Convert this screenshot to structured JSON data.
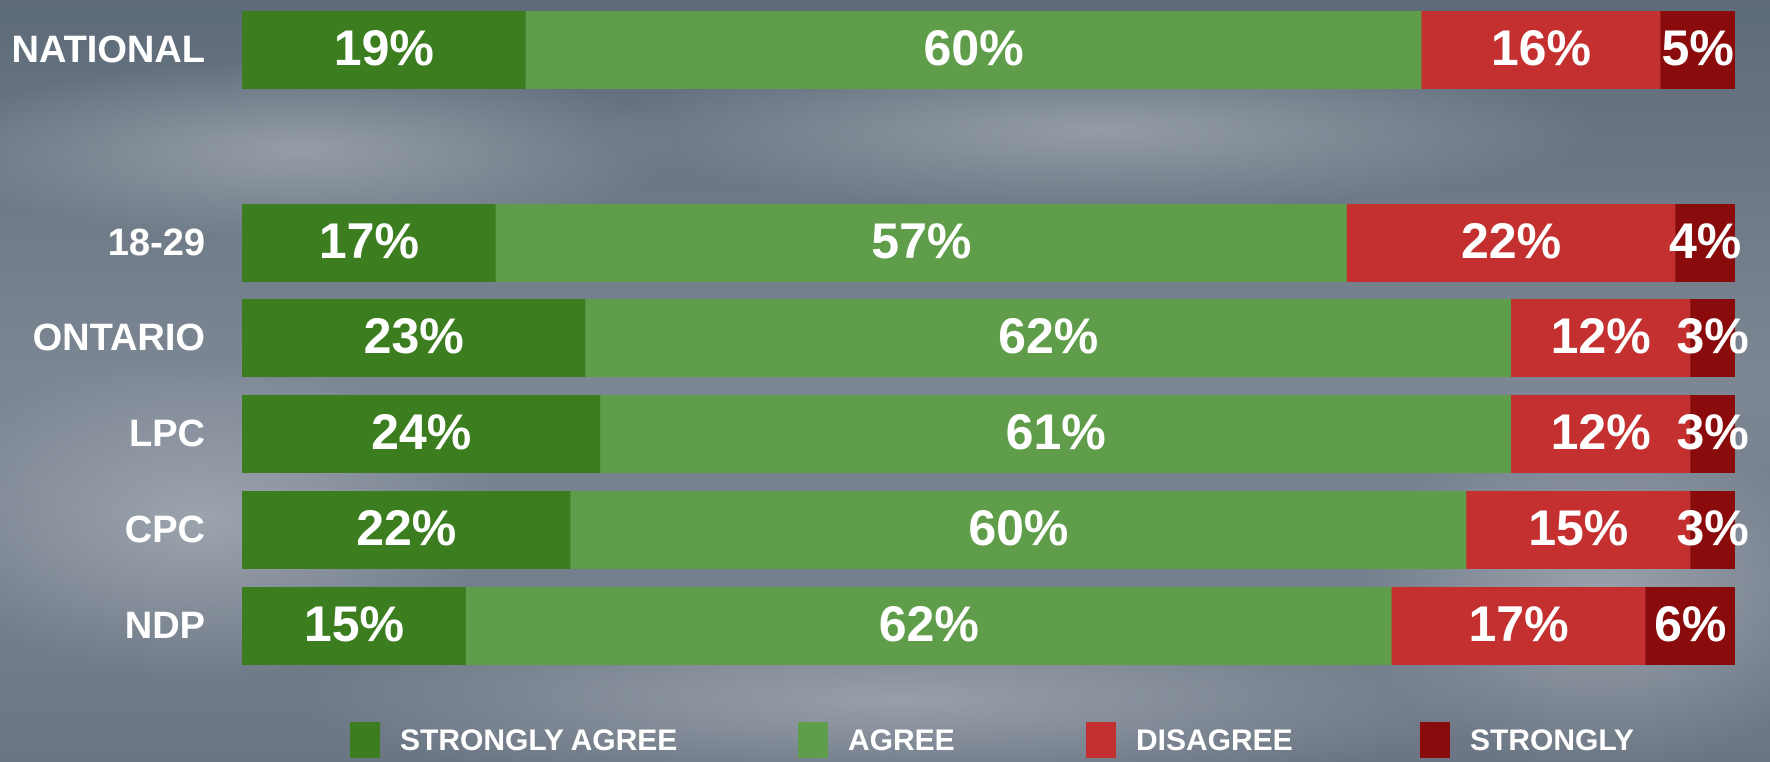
{
  "chart_data": {
    "type": "stacked_bar_horizontal",
    "categories": [
      "NATIONAL",
      "18-29",
      "ONTARIO",
      "LPC",
      "CPC",
      "NDP"
    ],
    "series": [
      {
        "name": "STRONGLY AGREE",
        "color": "#3b7d1f",
        "values": [
          19,
          17,
          23,
          24,
          22,
          15
        ],
        "value_labels": [
          "19%",
          "17%",
          "23%",
          "24%",
          "22%",
          "15%"
        ]
      },
      {
        "name": "AGREE",
        "color": "#5f9d4a",
        "values": [
          60,
          57,
          62,
          61,
          60,
          62
        ],
        "value_labels": [
          "60%",
          "57%",
          "62%",
          "61%",
          "60%",
          "62%"
        ]
      },
      {
        "name": "DISAGREE",
        "color": "#c3302f",
        "values": [
          16,
          22,
          12,
          12,
          15,
          17
        ],
        "value_labels": [
          "16%",
          "22%",
          "12%",
          "12%",
          "15%",
          "17%"
        ]
      },
      {
        "name": "STRONGLY",
        "color": "#8a0b0b",
        "values": [
          5,
          4,
          3,
          3,
          3,
          6
        ],
        "value_labels": [
          "5%",
          "4%",
          "3%",
          "3%",
          "3%",
          "6%"
        ]
      }
    ]
  }
}
